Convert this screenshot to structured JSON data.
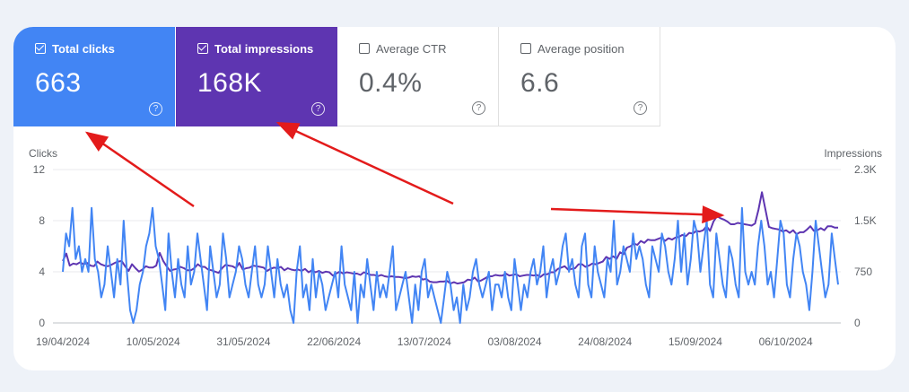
{
  "metrics": {
    "clicks": {
      "label": "Total clicks",
      "value": "663",
      "checked": true
    },
    "impressions": {
      "label": "Total impressions",
      "value": "168K",
      "checked": true
    },
    "ctr": {
      "label": "Average CTR",
      "value": "0.4%",
      "checked": false
    },
    "position": {
      "label": "Average position",
      "value": "6.6",
      "checked": false
    },
    "help_glyph": "?"
  },
  "colors": {
    "clicks": "#4285f4",
    "impressions": "#5e35b1",
    "arrow": "#e31b1b",
    "grid": "#e8eaed"
  },
  "chart_data": {
    "type": "line",
    "left_axis_label": "Clicks",
    "right_axis_label": "Impressions",
    "left_ticks": [
      "0",
      "4",
      "8",
      "12"
    ],
    "right_ticks": [
      "0",
      "750",
      "1.5K",
      "2.3K"
    ],
    "x_tick_labels": [
      "19/04/2024",
      "10/05/2024",
      "31/05/2024",
      "22/06/2024",
      "13/07/2024",
      "03/08/2024",
      "24/08/2024",
      "15/09/2024",
      "06/10/2024"
    ],
    "start_date": "2024-04-19",
    "ylim_left": [
      0,
      12
    ],
    "ylim_right": [
      0,
      2300
    ],
    "grid": true,
    "series": [
      {
        "name": "Clicks",
        "axis": "left",
        "values": [
          4,
          7,
          6,
          9,
          5,
          6,
          4,
          5,
          4,
          9,
          5,
          4,
          2,
          3,
          6,
          4,
          2,
          5,
          3,
          8,
          4,
          1,
          0,
          1,
          3,
          4,
          6,
          7,
          9,
          6,
          5,
          3,
          1,
          7,
          4,
          2,
          5,
          3,
          2,
          6,
          3,
          4,
          7,
          5,
          3,
          1,
          6,
          4,
          2,
          3,
          7,
          5,
          2,
          3,
          4,
          6,
          5,
          3,
          2,
          4,
          6,
          3,
          2,
          3,
          6,
          4,
          2,
          5,
          3,
          2,
          3,
          1,
          0,
          4,
          6,
          2,
          3,
          1,
          5,
          2,
          4,
          3,
          1,
          2,
          3,
          4,
          2,
          6,
          3,
          2,
          1,
          4,
          0,
          3,
          2,
          5,
          3,
          1,
          4,
          2,
          3,
          2,
          4,
          6,
          1,
          2,
          3,
          4,
          2,
          0,
          3,
          1,
          4,
          5,
          2,
          3,
          2,
          1,
          0,
          2,
          4,
          3,
          1,
          2,
          0,
          3,
          1,
          2,
          4,
          5,
          3,
          2,
          3,
          4,
          1,
          3,
          3,
          2,
          4,
          2,
          1,
          5,
          3,
          1,
          3,
          2,
          4,
          5,
          3,
          4,
          6,
          2,
          4,
          5,
          3,
          4,
          6,
          7,
          4,
          5,
          3,
          2,
          6,
          7,
          3,
          2,
          6,
          4,
          3,
          2,
          5,
          4,
          8,
          3,
          4,
          6,
          5,
          4,
          7,
          5,
          6,
          5,
          3,
          2,
          6,
          5,
          4,
          7,
          6,
          4,
          3,
          5,
          8,
          4,
          7,
          3,
          5,
          8,
          7,
          4,
          6,
          8,
          3,
          2,
          7,
          5,
          3,
          2,
          6,
          5,
          3,
          2,
          9,
          4,
          3,
          4,
          3,
          6,
          8,
          6,
          3,
          4,
          2,
          5,
          8,
          7,
          3,
          2,
          5,
          7,
          6,
          4,
          3,
          1,
          4,
          8,
          6,
          4,
          2,
          3,
          7,
          5,
          3
        ]
      },
      {
        "name": "Impressions",
        "axis": "right",
        "values": [
          930,
          1040,
          860,
          890,
          880,
          910,
          880,
          900,
          860,
          850,
          920,
          880,
          860,
          850,
          870,
          900,
          920,
          930,
          850,
          780,
          880,
          820,
          770,
          800,
          850,
          830,
          830,
          860,
          1050,
          930,
          850,
          780,
          800,
          810,
          840,
          820,
          790,
          790,
          820,
          880,
          840,
          840,
          800,
          790,
          770,
          750,
          820,
          870,
          860,
          850,
          820,
          900,
          800,
          820,
          830,
          860,
          850,
          840,
          830,
          780,
          810,
          830,
          820,
          840,
          790,
          820,
          800,
          790,
          800,
          780,
          810,
          760,
          790,
          760,
          780,
          750,
          770,
          760,
          710,
          740,
          770,
          740,
          760,
          750,
          740,
          740,
          720,
          760,
          740,
          720,
          720,
          700,
          720,
          700,
          690,
          700,
          690,
          690,
          680,
          670,
          680,
          700,
          690,
          700,
          650,
          660,
          620,
          610,
          610,
          620,
          620,
          630,
          590,
          610,
          590,
          600,
          610,
          650,
          640,
          680,
          620,
          640,
          670,
          700,
          700,
          720,
          710,
          710,
          740,
          710,
          720,
          730,
          700,
          710,
          720,
          720,
          710,
          720,
          690,
          730,
          730,
          760,
          760,
          810,
          830,
          850,
          800,
          810,
          820,
          880,
          880,
          840,
          860,
          890,
          880,
          900,
          920,
          990,
          960,
          1000,
          960,
          1060,
          1030,
          1130,
          1150,
          1190,
          1170,
          1230,
          1200,
          1250,
          1240,
          1240,
          1260,
          1280,
          1230,
          1270,
          1250,
          1280,
          1290,
          1320,
          1300,
          1350,
          1340,
          1380,
          1370,
          1390,
          1450,
          1380,
          1520,
          1600,
          1570,
          1550,
          1520,
          1480,
          1480,
          1500,
          1490,
          1480,
          1470,
          1460,
          1490,
          1700,
          1960,
          1700,
          1440,
          1420,
          1410,
          1400,
          1370,
          1390,
          1350,
          1390,
          1330,
          1360,
          1360,
          1400,
          1450,
          1380,
          1390,
          1420,
          1390,
          1450,
          1450,
          1430,
          1430
        ]
      }
    ]
  }
}
